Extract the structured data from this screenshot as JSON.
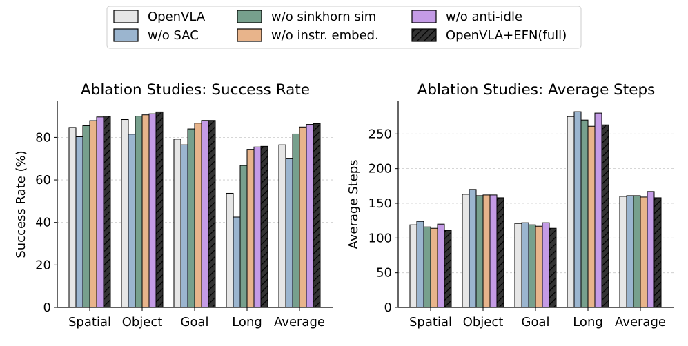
{
  "legend": {
    "items": [
      {
        "label": "OpenVLA",
        "color": "#e6e6e6",
        "hatch": false
      },
      {
        "label": "w/o SAC",
        "color": "#9bb5cf",
        "hatch": false
      },
      {
        "label": "w/o sinkhorn sim",
        "color": "#77a08d",
        "hatch": false
      },
      {
        "label": "w/o instr. embed.",
        "color": "#e8b48b",
        "hatch": false
      },
      {
        "label": "w/o anti-idle",
        "color": "#c49be6",
        "hatch": false
      },
      {
        "label": "OpenVLA+EFN(full)",
        "color": "#333333",
        "hatch": true
      }
    ]
  },
  "chart_data": [
    {
      "type": "bar",
      "title": "Ablation Studies: Success Rate",
      "xlabel": "",
      "ylabel": "Success Rate (%)",
      "categories": [
        "Spatial",
        "Object",
        "Goal",
        "Long",
        "Average"
      ],
      "ylim": [
        0,
        97
      ],
      "yticks": [
        0,
        20,
        40,
        60,
        80
      ],
      "grid": "y-dashed",
      "series": [
        {
          "name": "OpenVLA",
          "values": [
            84.7,
            88.4,
            79.2,
            53.7,
            76.5
          ]
        },
        {
          "name": "w/o SAC",
          "values": [
            80.3,
            81.5,
            76.5,
            42.5,
            70.2
          ]
        },
        {
          "name": "w/o sinkhorn sim",
          "values": [
            85.5,
            90.0,
            84.0,
            66.8,
            81.6
          ]
        },
        {
          "name": "w/o instr. embed.",
          "values": [
            87.9,
            90.6,
            86.7,
            74.4,
            84.9
          ]
        },
        {
          "name": "w/o anti-idle",
          "values": [
            89.6,
            91.1,
            88.0,
            75.5,
            86.1
          ]
        },
        {
          "name": "OpenVLA+EFN(full)",
          "values": [
            90.0,
            92.0,
            88.0,
            75.8,
            86.5
          ]
        }
      ]
    },
    {
      "type": "bar",
      "title": "Ablation Studies: Average Steps",
      "xlabel": "",
      "ylabel": "Average Steps",
      "categories": [
        "Spatial",
        "Object",
        "Goal",
        "Long",
        "Average"
      ],
      "ylim": [
        0,
        297
      ],
      "yticks": [
        0,
        50,
        100,
        150,
        200,
        250
      ],
      "grid": "y-dashed",
      "series": [
        {
          "name": "OpenVLA",
          "values": [
            119,
            163,
            121,
            275,
            160
          ]
        },
        {
          "name": "w/o SAC",
          "values": [
            124,
            170,
            122,
            282,
            161
          ]
        },
        {
          "name": "w/o sinkhorn sim",
          "values": [
            116,
            161,
            119,
            270,
            161
          ]
        },
        {
          "name": "w/o instr. embed.",
          "values": [
            114,
            162,
            117,
            261,
            159
          ]
        },
        {
          "name": "w/o anti-idle",
          "values": [
            120,
            162,
            122,
            280,
            167
          ]
        },
        {
          "name": "OpenVLA+EFN(full)",
          "values": [
            111,
            158,
            114,
            263,
            158
          ]
        }
      ]
    }
  ]
}
